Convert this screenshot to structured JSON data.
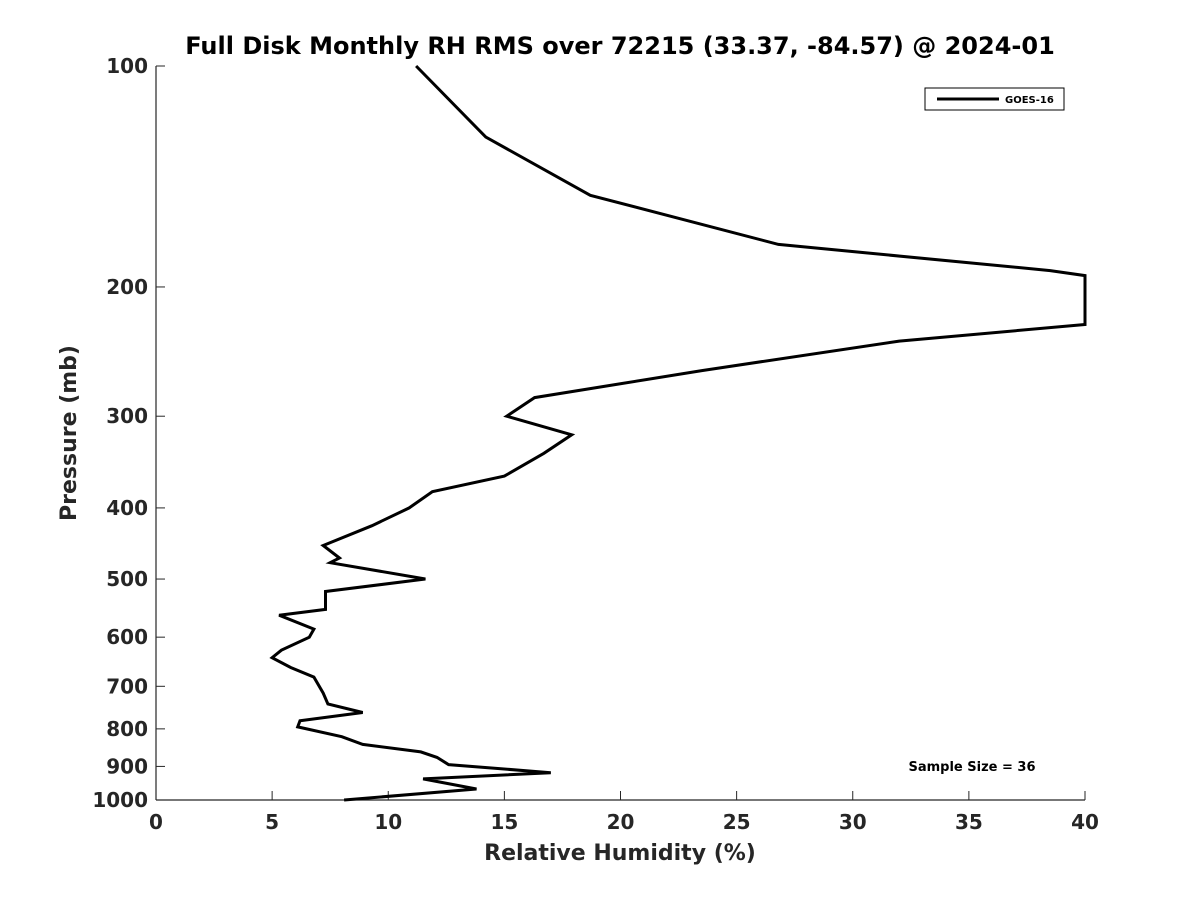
{
  "chart_data": {
    "type": "line",
    "title": "Full Disk Monthly RH RMS over 72215 (33.37, -84.57) @ 2024-01",
    "xlabel": "Relative Humidity (%)",
    "ylabel": "Pressure (mb)",
    "xlim": [
      0,
      40
    ],
    "ylim": [
      100,
      1000
    ],
    "y_scale": "log",
    "y_reversed": true,
    "xticks": [
      0,
      5,
      10,
      15,
      20,
      25,
      30,
      35,
      40
    ],
    "yticks": [
      100,
      200,
      300,
      400,
      500,
      600,
      700,
      800,
      900,
      1000
    ],
    "grid": false,
    "legend": {
      "position": "top-right"
    },
    "annotation": "Sample Size = 36",
    "series": [
      {
        "name": "GOES-16",
        "color": "#000000",
        "points": [
          [
            11.2,
            100
          ],
          [
            14.2,
            125
          ],
          [
            18.7,
            150
          ],
          [
            26.8,
            175
          ],
          [
            38.5,
            190
          ],
          [
            40,
            193
          ],
          [
            40,
            225
          ],
          [
            32.0,
            237
          ],
          [
            23.5,
            260
          ],
          [
            16.3,
            283
          ],
          [
            15.1,
            300
          ],
          [
            17.9,
            318
          ],
          [
            16.7,
            337
          ],
          [
            15.0,
            362
          ],
          [
            11.9,
            380
          ],
          [
            10.9,
            400
          ],
          [
            9.3,
            423
          ],
          [
            7.2,
            450
          ],
          [
            7.9,
            468
          ],
          [
            7.5,
            475
          ],
          [
            11.6,
            500
          ],
          [
            7.3,
            520
          ],
          [
            7.3,
            550
          ],
          [
            5.3,
            560
          ],
          [
            6.8,
            585
          ],
          [
            6.6,
            600
          ],
          [
            5.4,
            625
          ],
          [
            5.0,
            640
          ],
          [
            5.8,
            660
          ],
          [
            6.8,
            680
          ],
          [
            7.2,
            715
          ],
          [
            7.4,
            740
          ],
          [
            8.9,
            760
          ],
          [
            6.2,
            780
          ],
          [
            6.1,
            795
          ],
          [
            8.0,
            820
          ],
          [
            8.9,
            840
          ],
          [
            11.4,
            860
          ],
          [
            12.1,
            875
          ],
          [
            12.6,
            895
          ],
          [
            17.0,
            918
          ],
          [
            11.5,
            936
          ],
          [
            13.8,
            966
          ],
          [
            8.1,
            1000
          ]
        ]
      }
    ]
  }
}
